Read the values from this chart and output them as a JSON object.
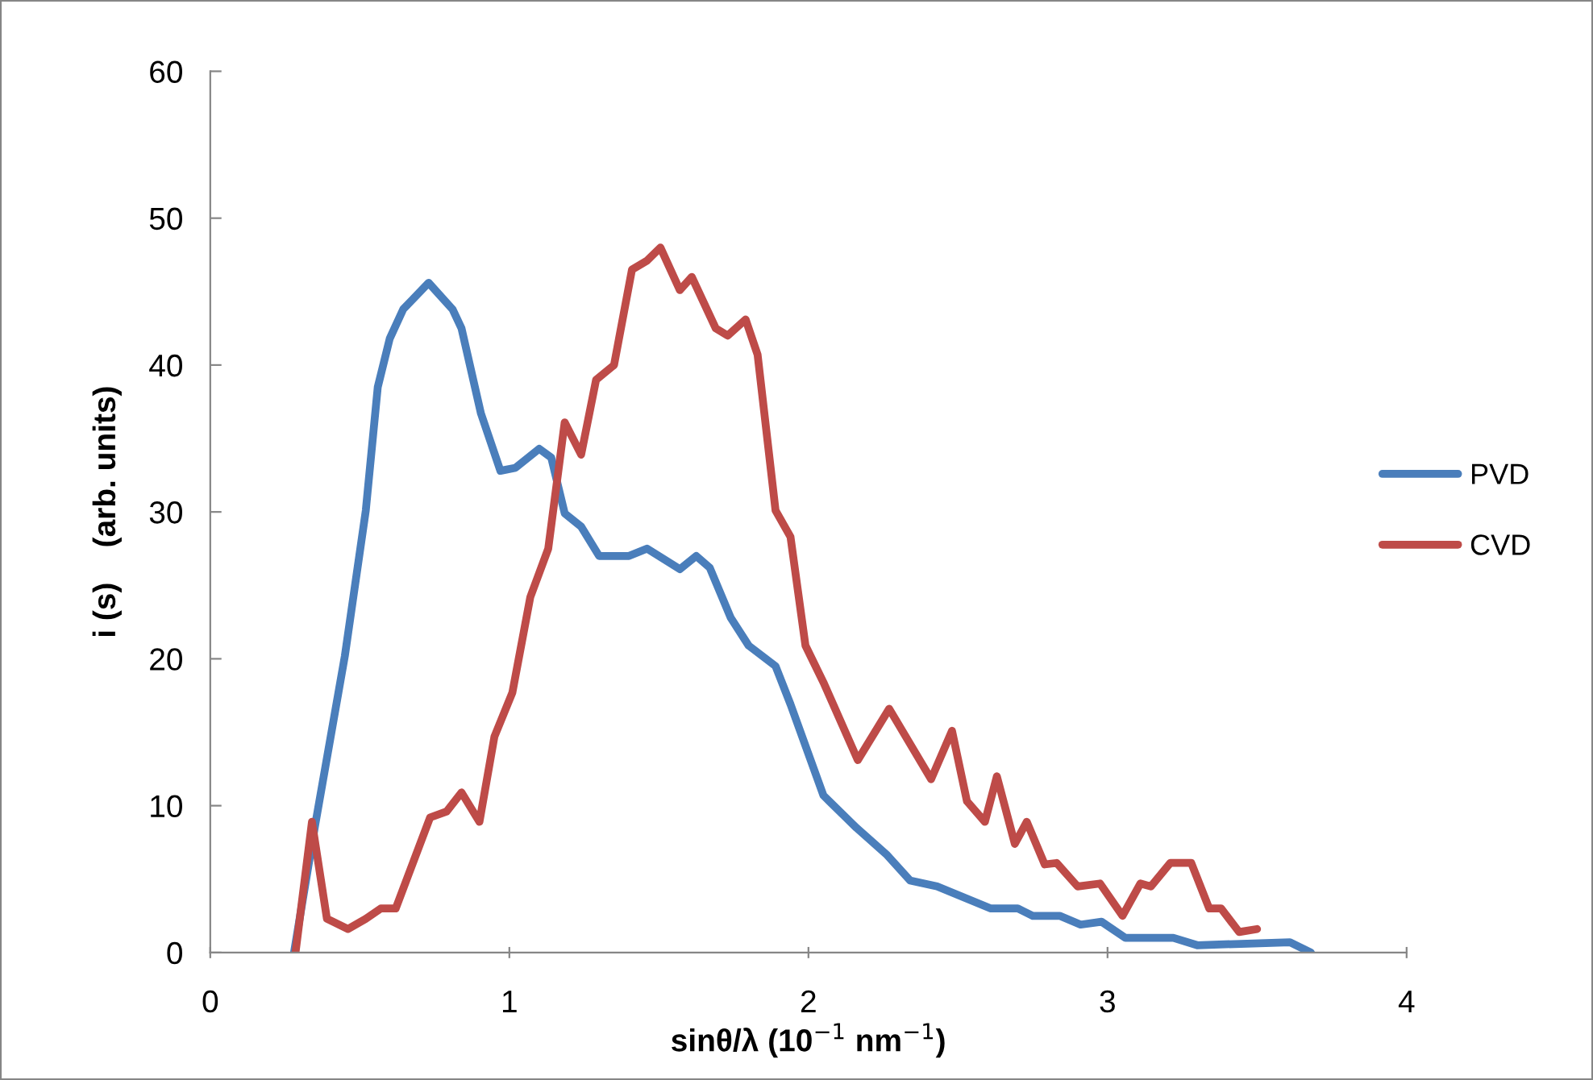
{
  "chart_data": {
    "type": "line",
    "xlabel": "sinθ/λ (10$^{−1}$ nm$^{−1}$)",
    "ylabel": "i (s)    (arb. units)",
    "xlim": [
      0,
      4
    ],
    "xticks": [
      0,
      1,
      2,
      3,
      4
    ],
    "ylim": [
      0,
      60
    ],
    "yticks": [
      0,
      10,
      20,
      30,
      40,
      50,
      60
    ],
    "grid": false,
    "legend": "right",
    "line_style": "solid",
    "marker": "none",
    "series": [
      {
        "name": "PVD",
        "color": "#4a7ebb",
        "x": [
          0.28,
          0.35,
          0.45,
          0.52,
          0.56,
          0.6,
          0.645,
          0.73,
          0.81,
          0.84,
          0.905,
          0.97,
          1.02,
          1.1,
          1.14,
          1.185,
          1.24,
          1.3,
          1.4,
          1.46,
          1.57,
          1.625,
          1.67,
          1.74,
          1.8,
          1.89,
          1.94,
          2.05,
          2.07,
          2.16,
          2.26,
          2.34,
          2.43,
          2.61,
          2.7,
          2.75,
          2.84,
          2.91,
          2.98,
          3.06,
          3.22,
          3.3,
          3.61,
          3.68
        ],
        "values": [
          0,
          8.6,
          20.2,
          30.1,
          38.5,
          41.8,
          43.8,
          45.6,
          43.8,
          42.5,
          36.7,
          32.8,
          33.0,
          34.3,
          33.7,
          29.9,
          29.0,
          27.0,
          27.0,
          27.5,
          26.1,
          27.0,
          26.2,
          22.8,
          20.9,
          19.5,
          16.9,
          10.7,
          10.3,
          8.5,
          6.7,
          4.9,
          4.5,
          3.0,
          3.0,
          2.5,
          2.5,
          1.9,
          2.1,
          1.0,
          1.0,
          0.5,
          0.7,
          0
        ]
      },
      {
        "name": "CVD",
        "color": "#be4b48",
        "x": [
          0.285,
          0.34,
          0.39,
          0.46,
          0.52,
          0.57,
          0.62,
          0.735,
          0.79,
          0.84,
          0.9,
          0.95,
          1.01,
          1.07,
          1.13,
          1.185,
          1.24,
          1.29,
          1.35,
          1.41,
          1.46,
          1.505,
          1.57,
          1.61,
          1.69,
          1.73,
          1.79,
          1.83,
          1.89,
          1.94,
          1.99,
          2.05,
          2.165,
          2.27,
          2.41,
          2.48,
          2.53,
          2.59,
          2.63,
          2.69,
          2.73,
          2.79,
          2.83,
          2.9,
          2.975,
          3.05,
          3.11,
          3.145,
          3.21,
          3.28,
          3.34,
          3.38,
          3.44,
          3.5
        ],
        "values": [
          0,
          8.9,
          2.3,
          1.6,
          2.3,
          3.0,
          3.0,
          9.2,
          9.6,
          10.9,
          8.9,
          14.7,
          17.7,
          24.2,
          27.5,
          36.1,
          33.9,
          39.0,
          40.0,
          46.5,
          47.1,
          48.0,
          45.1,
          46.0,
          42.5,
          42.0,
          43.1,
          40.7,
          30.1,
          28.3,
          20.9,
          18.4,
          13.1,
          16.6,
          11.8,
          15.1,
          10.3,
          8.9,
          12.0,
          7.4,
          8.9,
          6.0,
          6.1,
          4.5,
          4.7,
          2.5,
          4.7,
          4.5,
          6.1,
          6.1,
          3.0,
          3.0,
          1.4,
          1.6
        ]
      }
    ]
  }
}
